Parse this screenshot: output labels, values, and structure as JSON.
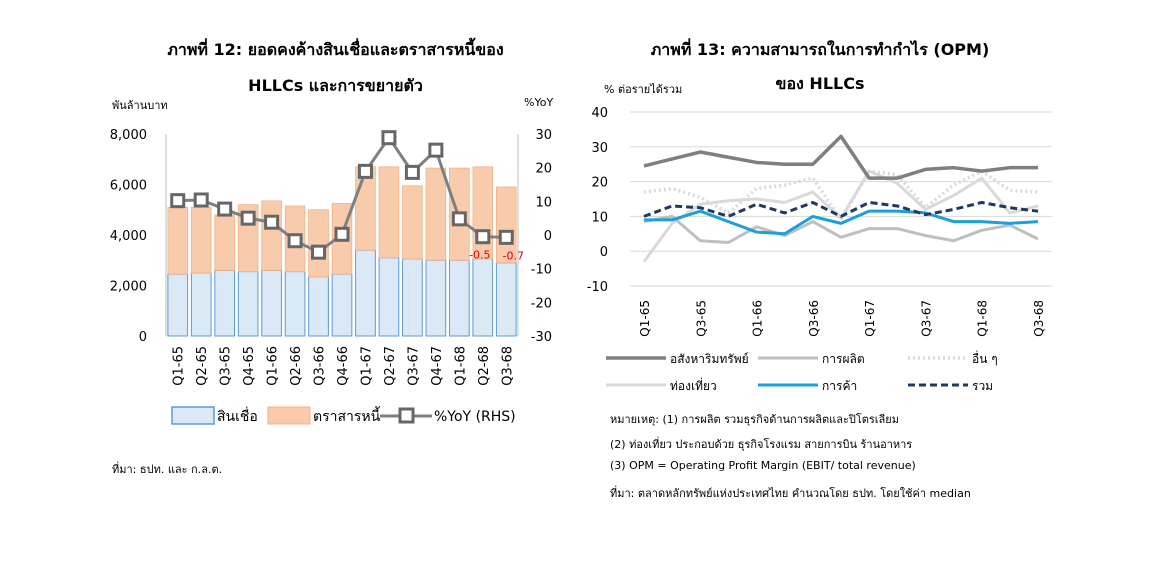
{
  "chart_data": [
    {
      "type": "bar",
      "title": "ภาพที่ 12: ยอดคงค้างสินเชื่อและตราสารหนี้ของ",
      "title_line2": "HLLCs และการขยายตัว",
      "ylabel_left": "พันล้านบาท",
      "ylabel_right": "%YoY",
      "categories": [
        "Q1-65",
        "Q2-65",
        "Q3-65",
        "Q4-65",
        "Q1-66",
        "Q2-66",
        "Q3-66",
        "Q4-66",
        "Q1-67",
        "Q2-67",
        "Q3-67",
        "Q4-67",
        "Q1-68",
        "Q2-68",
        "Q3-68"
      ],
      "ylim_left": [
        0,
        8000
      ],
      "yticks_left": [
        "0",
        "2,000",
        "4,000",
        "6,000",
        "8,000"
      ],
      "ylim_right": [
        -30,
        30
      ],
      "yticks_right": [
        "-30",
        "-20",
        "-10",
        "0",
        "10",
        "20",
        "30"
      ],
      "series": [
        {
          "name": "สินเชื่อ",
          "kind": "bar-stack",
          "color": "#dbe8f6",
          "edge": "#5b9bd5",
          "values": [
            2450,
            2500,
            2600,
            2550,
            2600,
            2550,
            2350,
            2450,
            3400,
            3100,
            3050,
            3000,
            3000,
            3050,
            2900
          ]
        },
        {
          "name": "ตราสารหนี้",
          "kind": "bar-stack",
          "color": "#f8cbad",
          "edge": "#f4b183",
          "values": [
            2650,
            2600,
            2200,
            2650,
            2750,
            2600,
            2650,
            2800,
            3300,
            3600,
            2900,
            3650,
            3650,
            3650,
            3000
          ]
        },
        {
          "name": "%YoY (RHS)",
          "kind": "line",
          "axis": "right",
          "color": "#7f7f7f",
          "values": [
            10.2,
            10.4,
            7.7,
            5.0,
            3.8,
            -1.7,
            -5.1,
            0.2,
            18.9,
            28.9,
            18.6,
            25.2,
            4.8,
            -0.5,
            -0.7
          ]
        }
      ],
      "data_labels": [
        {
          "index": 13,
          "text": "-0.5"
        },
        {
          "index": 14,
          "text": "-0.7"
        }
      ],
      "source": "ที่มา: ธปท. และ ก.ล.ต."
    },
    {
      "type": "line",
      "title": "ภาพที่ 13: ความสามารถในการทำกำไร (OPM)",
      "title_line2": "ของ HLLCs",
      "ylabel": "% ต่อรายได้รวม",
      "ylim": [
        -10,
        40
      ],
      "yticks": [
        "-10",
        "0",
        "10",
        "20",
        "30",
        "40"
      ],
      "categories": [
        "Q1-65",
        "Q2-65",
        "Q3-65",
        "Q4-65",
        "Q1-66",
        "Q2-66",
        "Q3-66",
        "Q4-66",
        "Q1-67",
        "Q2-67",
        "Q3-67",
        "Q4-67",
        "Q1-68",
        "Q2-68",
        "Q3-68"
      ],
      "x_tick_labels": [
        "Q1-65",
        "Q3-65",
        "Q1-66",
        "Q3-66",
        "Q1-67",
        "Q3-67",
        "Q1-68",
        "Q3-68"
      ],
      "series": [
        {
          "name": "อสังหาริมทรัพย์",
          "color": "#7f7f7f",
          "style": "solid",
          "width": 3.5,
          "values": [
            24.5,
            26.5,
            28.5,
            27,
            25.5,
            25,
            25,
            33,
            21,
            21,
            23.5,
            24,
            23,
            24,
            24
          ]
        },
        {
          "name": "การผลิต",
          "color": "#bfbfbf",
          "style": "solid",
          "width": 3,
          "values": [
            8.5,
            10,
            3,
            2.5,
            7,
            4.5,
            8.5,
            4,
            6.5,
            6.5,
            4.5,
            3,
            6,
            7.5,
            3.5
          ]
        },
        {
          "name": "อื่น ๆ",
          "color": "#d9d9d9",
          "style": "dotted",
          "width": 3.5,
          "values": [
            17,
            18,
            15.5,
            11,
            18,
            19,
            21,
            9,
            23,
            22,
            12.5,
            19,
            23,
            17.5,
            17
          ]
        },
        {
          "name": "ท่องเที่ยว",
          "color": "#d9d9d9",
          "style": "solid",
          "width": 3,
          "values": [
            -3,
            8,
            13.5,
            14.5,
            15,
            14,
            17,
            9.5,
            23,
            19.5,
            12,
            16,
            21,
            11,
            13
          ]
        },
        {
          "name": "การค้า",
          "color": "#1ba1d8",
          "style": "solid",
          "width": 3,
          "values": [
            9,
            9,
            11.5,
            8.5,
            5.5,
            5,
            10,
            8,
            11.5,
            11.5,
            11,
            8.5,
            8.5,
            8,
            8.5
          ]
        },
        {
          "name": "รวม",
          "color": "#1f3864",
          "style": "dashed",
          "width": 3,
          "values": [
            10,
            13,
            12.5,
            10,
            13.5,
            11,
            14,
            10,
            14,
            13,
            10.5,
            12,
            14,
            12.5,
            11.5
          ]
        }
      ],
      "notes": [
        "หมายเหตุ: (1)  การผลิต รวมธุรกิจด้านการผลิตและปิโตรเลียม",
        "(2) ท่องเที่ยว ประกอบด้วย ธุรกิจโรงแรม สายการบิน ร้านอาหาร",
        "(3) OPM = Operating Profit Margin (EBIT/ total revenue)",
        "ที่มา: ตลาดหลักทรัพย์แห่งประเทศไทย คำนวณโดย ธปท. โดยใช้ค่า median"
      ]
    }
  ]
}
